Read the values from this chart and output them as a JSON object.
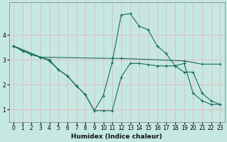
{
  "xlabel": "Humidex (Indice chaleur)",
  "ylabel": "",
  "xlim": [
    -0.5,
    23.5
  ],
  "ylim": [
    0.5,
    5.3
  ],
  "bg_color": "#c5e8e2",
  "grid_color": "#e8b8b8",
  "line_color": "#1a6b60",
  "series": [
    {
      "x": [
        0,
        1,
        2,
        3
      ],
      "y": [
        3.55,
        3.35,
        3.2,
        3.1
      ]
    },
    {
      "x": [
        0,
        3,
        4,
        5,
        6,
        7,
        8,
        9,
        10,
        11,
        12,
        13,
        14,
        15,
        16,
        17,
        18,
        19,
        20,
        21,
        22,
        23
      ],
      "y": [
        3.55,
        3.1,
        3.0,
        2.6,
        2.35,
        1.95,
        1.6,
        0.95,
        1.55,
        2.9,
        4.8,
        4.85,
        4.35,
        4.2,
        3.55,
        3.25,
        2.75,
        2.85,
        1.65,
        1.35,
        1.2,
        1.2
      ]
    },
    {
      "x": [
        0,
        3,
        4,
        5,
        6,
        7,
        8,
        9,
        10,
        11,
        12,
        13,
        14,
        15,
        16,
        17,
        18,
        19,
        20,
        21,
        22,
        23
      ],
      "y": [
        3.55,
        3.1,
        2.95,
        2.6,
        2.35,
        1.95,
        1.6,
        0.95,
        0.95,
        0.95,
        2.3,
        2.85,
        2.85,
        2.8,
        2.75,
        2.75,
        2.75,
        2.5,
        2.5,
        1.65,
        1.35,
        1.2
      ]
    },
    {
      "x": [
        0,
        3,
        11,
        12,
        19,
        21,
        23
      ],
      "y": [
        3.55,
        3.1,
        3.05,
        3.05,
        2.95,
        2.82,
        2.82
      ]
    }
  ],
  "yticks": [
    1,
    2,
    3,
    4
  ],
  "xticks": [
    0,
    1,
    2,
    3,
    4,
    5,
    6,
    7,
    8,
    9,
    10,
    11,
    12,
    13,
    14,
    15,
    16,
    17,
    18,
    19,
    20,
    21,
    22,
    23
  ]
}
